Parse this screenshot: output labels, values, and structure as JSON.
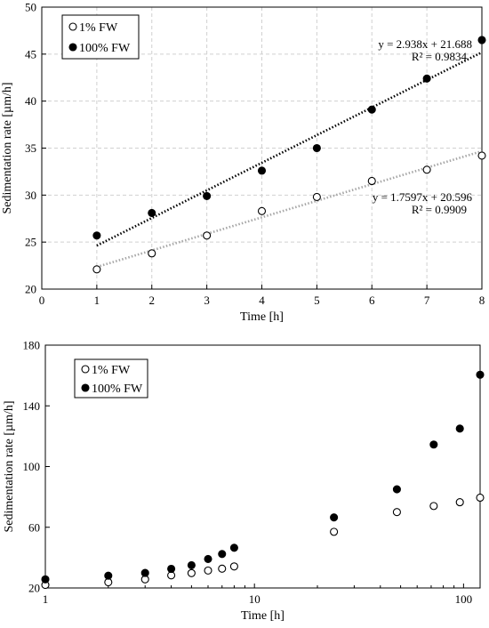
{
  "chart_data": [
    {
      "type": "scatter",
      "title": "",
      "xlabel": "Time [h]",
      "ylabel": "Sedimentation rate [µm/h]",
      "xlim": [
        0,
        8
      ],
      "ylim": [
        20,
        50
      ],
      "x_ticks": [
        0,
        1,
        2,
        3,
        4,
        5,
        6,
        7,
        8
      ],
      "y_ticks": [
        20,
        25,
        30,
        35,
        40,
        45,
        50
      ],
      "grid": true,
      "legend_position": "top-left",
      "series": [
        {
          "name": "1% FW",
          "marker": "open-circle",
          "x": [
            1,
            2,
            3,
            4,
            5,
            6,
            7,
            8
          ],
          "y": [
            22.1,
            23.8,
            25.7,
            28.3,
            29.8,
            31.5,
            32.7,
            34.2
          ],
          "trendline": {
            "equation": "y = 1.7597x + 20.596",
            "r2": "R² = 0.9909",
            "slope": 1.7597,
            "intercept": 20.596,
            "color": "#a6a6a6"
          }
        },
        {
          "name": "100% FW",
          "marker": "filled-circle",
          "x": [
            1,
            2,
            3,
            4,
            5,
            6,
            7,
            8
          ],
          "y": [
            25.7,
            28.1,
            29.9,
            32.6,
            35.0,
            39.1,
            42.4,
            46.5
          ],
          "trendline": {
            "equation": "y = 2.938x + 21.688",
            "r2": "R² = 0.9834",
            "slope": 2.938,
            "intercept": 21.688,
            "color": "#000000"
          }
        }
      ]
    },
    {
      "type": "scatter",
      "title": "",
      "xlabel": "Time [h]",
      "ylabel": "Sedimentation rate [µm/h]",
      "xscale": "log",
      "xlim": [
        1,
        120
      ],
      "ylim": [
        20,
        180
      ],
      "x_ticks": [
        1,
        10,
        100
      ],
      "y_ticks": [
        20,
        60,
        100,
        140,
        180
      ],
      "grid": false,
      "legend_position": "top-left",
      "series": [
        {
          "name": "1% FW",
          "marker": "open-circle",
          "x": [
            1,
            2,
            3,
            4,
            5,
            6,
            7,
            8,
            24,
            48,
            72,
            96,
            120
          ],
          "y": [
            22,
            23.8,
            25.7,
            28.3,
            29.8,
            31.5,
            32.7,
            34.2,
            57,
            70,
            74,
            76.5,
            79.5
          ]
        },
        {
          "name": "100% FW",
          "marker": "filled-circle",
          "x": [
            1,
            2,
            3,
            4,
            5,
            6,
            7,
            8,
            24,
            48,
            72,
            96,
            120
          ],
          "y": [
            25.7,
            28.1,
            29.9,
            32.6,
            35.0,
            39.1,
            42.4,
            46.5,
            66.5,
            85,
            114.5,
            125,
            160.5
          ]
        }
      ]
    }
  ]
}
